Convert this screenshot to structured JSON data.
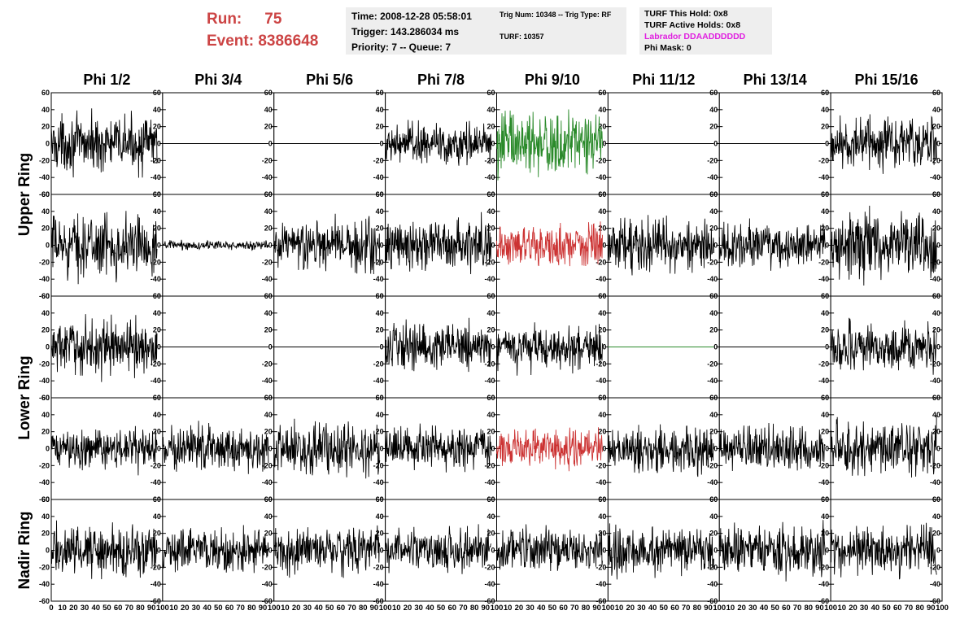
{
  "run": {
    "label": "Run:",
    "value": "75"
  },
  "event": {
    "label": "Event:",
    "value": "8386648"
  },
  "time_box": {
    "time": "Time: 2008-12-28 05:58:01",
    "trigger": "Trigger: 143.286034 ms",
    "priority": "Priority: 7 -- Queue: 7"
  },
  "trig_box": {
    "trig": "Trig Num: 10348 -- Trig Type: RF",
    "turf": "TURF: 10357"
  },
  "turf_box": {
    "this_hold": "TURF This Hold: 0x8",
    "active_holds": "TURF Active Holds: 0x8",
    "labrador": "Labrador DDAADDDDDD",
    "phi_mask": "Phi Mask: 0"
  },
  "colors": {
    "run_text": "#cc4444",
    "labrador": "#e020e0",
    "trace": "#000000",
    "green": "#2a8a2a",
    "red": "#cc3333",
    "infobox": "#eeeeee"
  },
  "chart_data": {
    "type": "line",
    "columns": [
      "Phi 1/2",
      "Phi 3/4",
      "Phi 5/6",
      "Phi 7/8",
      "Phi 9/10",
      "Phi 11/12",
      "Phi 13/14",
      "Phi 15/16"
    ],
    "rings": [
      "Upper Ring",
      "Lower Ring",
      "Nadir Ring"
    ],
    "ylim": [
      -60,
      60
    ],
    "yticks": [
      -60,
      -40,
      -20,
      0,
      20,
      40,
      60
    ],
    "xlim": [
      0,
      100
    ],
    "xtick_labels": [
      "0",
      "10",
      "20",
      "30",
      "40",
      "50",
      "60",
      "70",
      "80",
      "90",
      "100"
    ],
    "n_points": 260,
    "x_extent": 95,
    "rows": [
      {
        "ring": "Upper Ring",
        "panels": [
          {
            "amp": 15,
            "color": "#000"
          },
          {
            "amp": 0,
            "color": "#000"
          },
          {
            "amp": 0,
            "color": "#000"
          },
          {
            "amp": 12,
            "color": "#000"
          },
          {
            "amp": 18,
            "color": "#2a8a2a"
          },
          {
            "amp": 0,
            "color": "#000"
          },
          {
            "amp": 0,
            "color": "#000"
          },
          {
            "amp": 14,
            "color": "#000"
          }
        ]
      },
      {
        "ring": "Upper Ring",
        "panels": [
          {
            "amp": 17,
            "color": "#000"
          },
          {
            "amp": 2.5,
            "color": "#000"
          },
          {
            "amp": 15,
            "color": "#000"
          },
          {
            "amp": 14,
            "color": "#000"
          },
          {
            "amp": 12,
            "color": "#cc3333"
          },
          {
            "amp": 14,
            "color": "#000"
          },
          {
            "amp": 12,
            "color": "#000"
          },
          {
            "amp": 18,
            "color": "#000"
          }
        ]
      },
      {
        "ring": "Lower Ring",
        "panels": [
          {
            "amp": 15,
            "color": "#000"
          },
          {
            "amp": 0,
            "color": "#000"
          },
          {
            "amp": 0,
            "color": "#000"
          },
          {
            "amp": 13,
            "color": "#000"
          },
          {
            "amp": 12,
            "color": "#000"
          },
          {
            "amp": 0,
            "color": "#2a8a2a"
          },
          {
            "amp": 0,
            "color": "#000"
          },
          {
            "amp": 13,
            "color": "#000"
          }
        ]
      },
      {
        "ring": "Lower Ring",
        "panels": [
          {
            "amp": 11,
            "color": "#000"
          },
          {
            "amp": 13,
            "color": "#000"
          },
          {
            "amp": 14,
            "color": "#000"
          },
          {
            "amp": 12,
            "color": "#000"
          },
          {
            "amp": 11,
            "color": "#cc3333"
          },
          {
            "amp": 13,
            "color": "#000"
          },
          {
            "amp": 12,
            "color": "#000"
          },
          {
            "amp": 15,
            "color": "#000"
          }
        ]
      },
      {
        "ring": "Nadir Ring",
        "panels": [
          {
            "amp": 14,
            "color": "#000"
          },
          {
            "amp": 12,
            "color": "#000"
          },
          {
            "amp": 13,
            "color": "#000"
          },
          {
            "amp": 12,
            "color": "#000"
          },
          {
            "amp": 12,
            "color": "#000"
          },
          {
            "amp": 14,
            "color": "#000"
          },
          {
            "amp": 14,
            "color": "#000"
          },
          {
            "amp": 14,
            "color": "#000"
          }
        ]
      }
    ]
  }
}
